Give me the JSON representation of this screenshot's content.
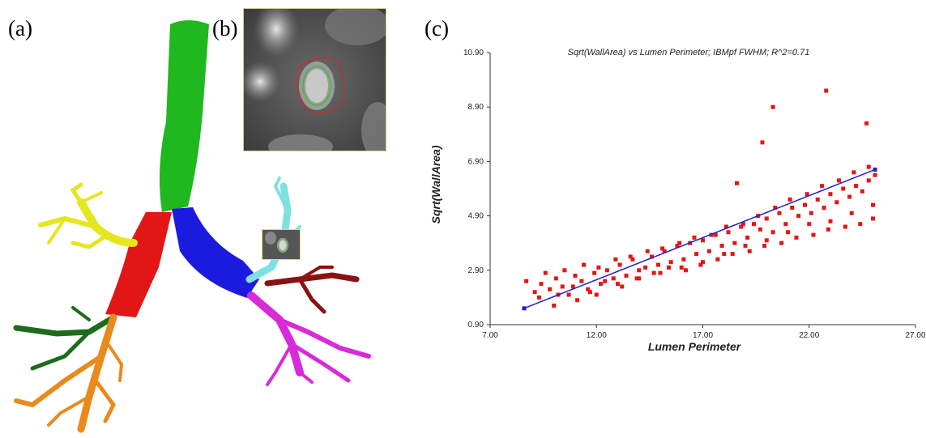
{
  "figure": {
    "panel_labels": {
      "a": "(a)",
      "b": "(b)",
      "c": "(c)"
    }
  },
  "segment_colors": {
    "trachea": "#1fb81f",
    "right_main": "#e31616",
    "left_main": "#1b1be0",
    "right_upper": "#e6e61e",
    "right_lower": "#ea8a1c",
    "right_middle": "#1d6b1d",
    "left_upper": "#7fe0e0",
    "left_lingula": "#8b1212",
    "left_lower": "#d82ad8"
  },
  "chart_data": {
    "type": "scatter",
    "title": "Sqrt(WallArea) vs Lumen Perimeter; IBMpf FWHM; R^2=0.71",
    "xlabel": "Lumen Perimeter",
    "ylabel": "Sqrt(WallArea)",
    "xlim": [
      7.0,
      27.0
    ],
    "ylim": [
      0.9,
      10.9
    ],
    "xticks": [
      "7.00",
      "12.00",
      "17.00",
      "22.00",
      "27.00"
    ],
    "yticks": [
      "0.90",
      "2.90",
      "4.90",
      "6.90",
      "8.90",
      "10.90"
    ],
    "grid": false,
    "point_color": "#e81414",
    "fit_color": "#2020d0",
    "series": [
      {
        "kind": "points",
        "x": [
          8.7,
          9.1,
          9.4,
          9.8,
          10.1,
          10.4,
          10.7,
          11.0,
          11.3,
          11.6,
          11.9,
          12.2,
          12.5,
          12.8,
          13.1,
          13.4,
          13.7,
          14.0,
          14.3,
          14.6,
          14.9,
          15.2,
          15.5,
          15.8,
          16.1,
          16.4,
          16.7,
          17.0,
          17.3,
          17.6,
          17.9,
          18.2,
          18.5,
          18.8,
          19.1,
          19.4,
          19.7,
          20.0,
          20.3,
          20.6,
          20.9,
          21.2,
          21.5,
          21.8,
          22.1,
          22.4,
          22.7,
          23.0,
          23.3,
          23.6,
          23.9,
          24.2,
          24.5,
          24.8,
          25.1,
          9.3,
          10.2,
          10.9,
          11.7,
          12.4,
          13.2,
          13.9,
          14.7,
          15.4,
          16.2,
          16.9,
          17.7,
          18.4,
          19.2,
          19.9,
          20.7,
          21.4,
          22.2,
          22.9,
          23.7,
          24.4,
          25.0,
          9.6,
          10.5,
          11.4,
          12.1,
          12.9,
          13.6,
          14.4,
          15.1,
          15.9,
          16.6,
          17.4,
          18.1,
          18.9,
          19.6,
          20.4,
          21.1,
          21.9,
          22.6,
          23.4,
          24.1,
          24.8,
          10.0,
          11.1,
          12.0,
          13.0,
          14.0,
          15.0,
          16.0,
          17.0,
          18.0,
          19.0,
          20.0,
          21.0,
          22.0,
          23.0,
          24.0,
          25.0,
          22.8,
          20.3,
          19.8,
          18.6,
          24.7
        ],
        "y": [
          2.5,
          2.1,
          2.4,
          2.2,
          2.6,
          2.3,
          2.0,
          2.7,
          2.5,
          2.2,
          2.8,
          2.4,
          2.9,
          2.6,
          3.1,
          2.7,
          3.3,
          2.9,
          3.0,
          3.4,
          3.1,
          3.6,
          3.2,
          3.8,
          3.3,
          3.9,
          3.5,
          4.0,
          3.6,
          4.2,
          3.8,
          4.3,
          3.9,
          4.5,
          4.1,
          4.6,
          4.4,
          4.8,
          4.3,
          5.0,
          4.6,
          5.2,
          4.9,
          5.3,
          5.0,
          5.5,
          5.2,
          5.7,
          5.4,
          5.9,
          5.6,
          6.0,
          5.8,
          6.2,
          6.4,
          1.9,
          2.0,
          2.3,
          2.1,
          2.5,
          2.3,
          2.6,
          2.8,
          3.0,
          2.9,
          3.1,
          3.3,
          3.5,
          3.6,
          3.8,
          3.9,
          4.1,
          4.2,
          4.4,
          4.5,
          4.6,
          4.8,
          2.8,
          2.9,
          3.1,
          3.0,
          3.3,
          3.4,
          3.6,
          3.7,
          3.9,
          4.1,
          4.2,
          4.5,
          4.6,
          4.9,
          5.2,
          5.5,
          5.7,
          6.0,
          6.2,
          6.5,
          6.7,
          1.6,
          1.8,
          2.0,
          2.4,
          2.6,
          2.8,
          3.0,
          3.2,
          3.5,
          3.8,
          4.0,
          4.3,
          4.6,
          4.7,
          5.0,
          5.3,
          9.5,
          8.9,
          7.6,
          6.1,
          8.3
        ]
      },
      {
        "kind": "fit",
        "x": [
          8.6,
          25.1
        ],
        "y": [
          1.5,
          6.6
        ]
      }
    ]
  }
}
